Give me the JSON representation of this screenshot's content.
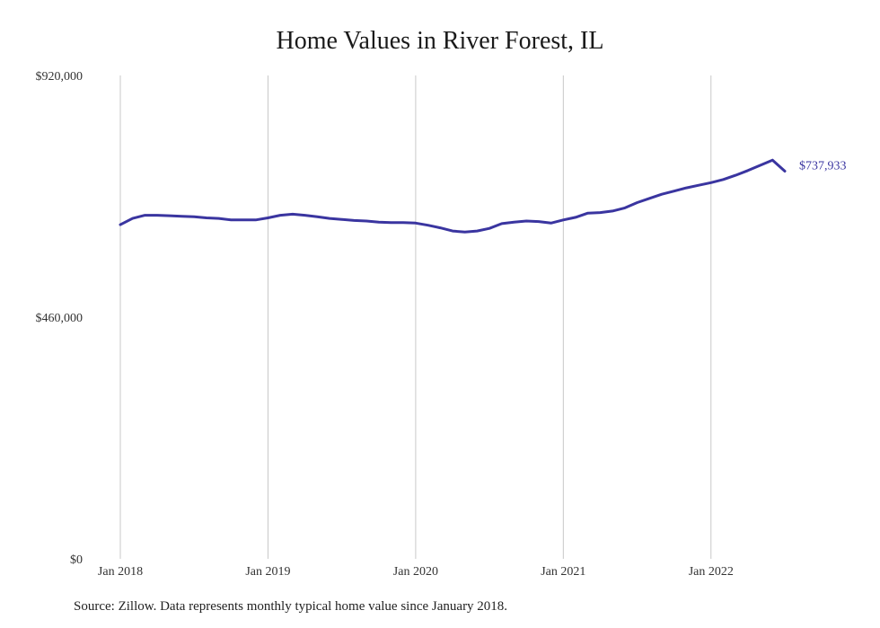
{
  "chart_data": {
    "type": "line",
    "title": "Home Values in River Forest, IL",
    "xlabel": "",
    "ylabel": "",
    "ylim": [
      0,
      920000
    ],
    "yticks": [
      0,
      460000,
      920000
    ],
    "ytick_labels": [
      "$0",
      "$460,000",
      "$920,000"
    ],
    "xlim": [
      "2018-01",
      "2022-07"
    ],
    "xticks": [
      "2018-01",
      "2019-01",
      "2020-01",
      "2021-01",
      "2022-01"
    ],
    "xtick_labels": [
      "Jan 2018",
      "Jan 2019",
      "Jan 2020",
      "Jan 2021",
      "Jan 2022"
    ],
    "grid": "vertical",
    "color": "#3a35a0",
    "end_label": "$737,933",
    "series": [
      {
        "x": [
          "2018-01",
          "2018-02",
          "2018-03",
          "2018-04",
          "2018-05",
          "2018-06",
          "2018-07",
          "2018-08",
          "2018-09",
          "2018-10",
          "2018-11",
          "2018-12",
          "2019-01",
          "2019-02",
          "2019-03",
          "2019-04",
          "2019-05",
          "2019-06",
          "2019-07",
          "2019-08",
          "2019-09",
          "2019-10",
          "2019-11",
          "2019-12",
          "2020-01",
          "2020-02",
          "2020-03",
          "2020-04",
          "2020-05",
          "2020-06",
          "2020-07",
          "2020-08",
          "2020-09",
          "2020-10",
          "2020-11",
          "2020-12",
          "2021-01",
          "2021-02",
          "2021-03",
          "2021-04",
          "2021-05",
          "2021-06",
          "2021-07",
          "2021-08",
          "2021-09",
          "2021-10",
          "2021-11",
          "2021-12",
          "2022-01",
          "2022-02",
          "2022-03",
          "2022-04",
          "2022-05",
          "2022-06",
          "2022-07"
        ],
        "values": [
          636000,
          648000,
          654000,
          654000,
          653000,
          652000,
          651000,
          649000,
          648000,
          645000,
          645000,
          645000,
          649000,
          654000,
          656000,
          654000,
          651000,
          648000,
          646000,
          644000,
          643000,
          641000,
          640000,
          640000,
          639000,
          635000,
          630000,
          624000,
          622000,
          624000,
          629000,
          638000,
          641000,
          643000,
          642000,
          639000,
          645000,
          650000,
          658000,
          659000,
          662000,
          668000,
          678000,
          686000,
          694000,
          700000,
          706000,
          711000,
          716000,
          722000,
          730000,
          739000,
          749000,
          759000,
          737933
        ]
      }
    ]
  },
  "source_note": "Source: Zillow. Data represents monthly typical home value since January 2018."
}
